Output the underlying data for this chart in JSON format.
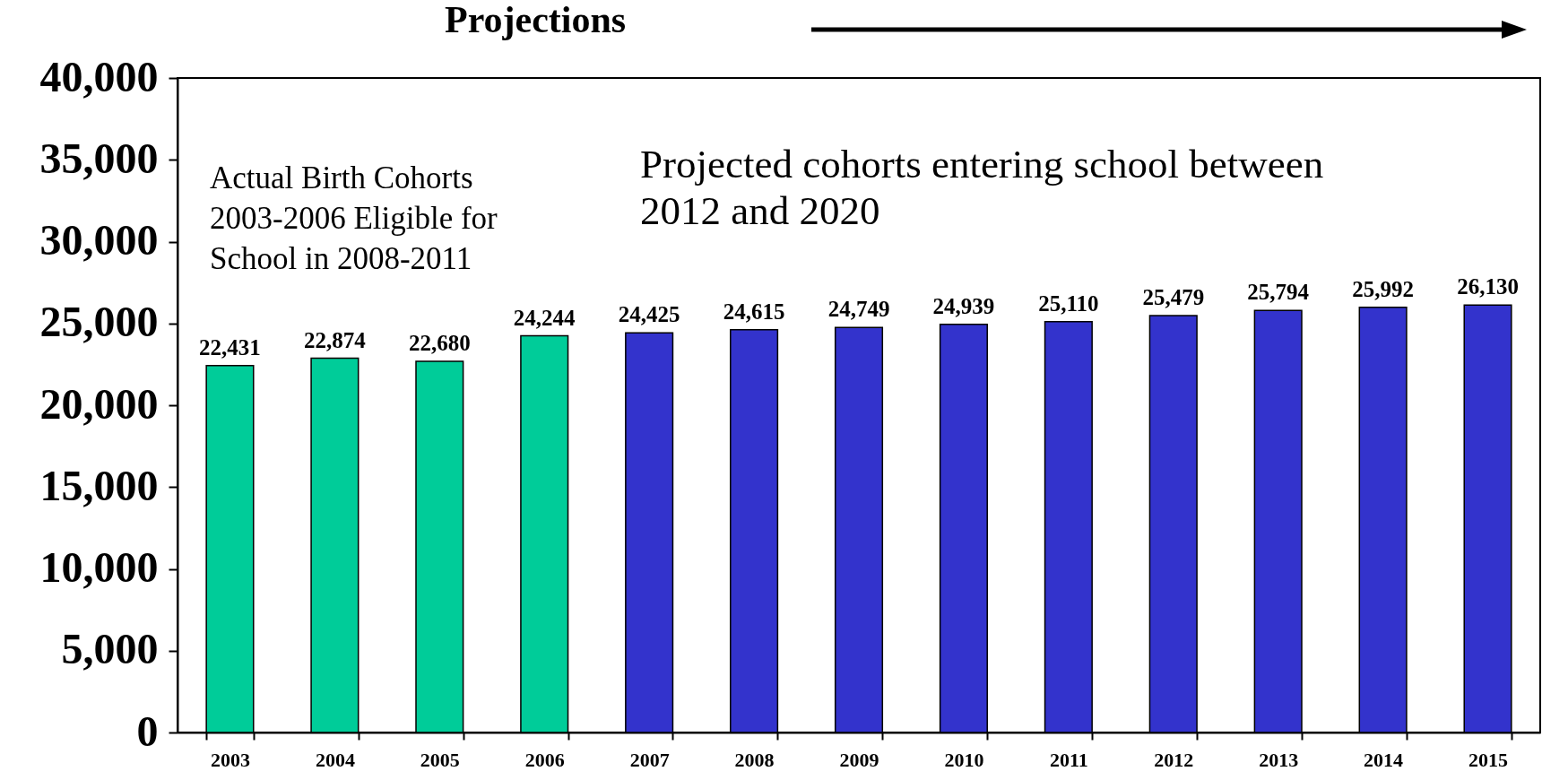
{
  "chart_data": {
    "type": "bar",
    "title": "Projections",
    "categories": [
      "2003",
      "2004",
      "2005",
      "2006",
      "2007",
      "2008",
      "2009",
      "2010",
      "2011",
      "2012",
      "2013",
      "2014",
      "2015"
    ],
    "values": [
      22431,
      22874,
      22680,
      24244,
      24425,
      24615,
      24749,
      24939,
      25110,
      25479,
      25794,
      25992,
      26130
    ],
    "colors": [
      "#00cc99",
      "#00cc99",
      "#00cc99",
      "#00cc99",
      "#3333cc",
      "#3333cc",
      "#3333cc",
      "#3333cc",
      "#3333cc",
      "#3333cc",
      "#3333cc",
      "#3333cc",
      "#3333cc"
    ],
    "value_labels": [
      "22,431",
      "22,874",
      "22,680",
      "24,244",
      "24,425",
      "24,615",
      "24,749",
      "24,939",
      "25,110",
      "25,479",
      "25,794",
      "25,992",
      "26,130"
    ],
    "annotations": [
      "Actual Birth Cohorts\n2003-2006 Eligible for\nSchool in 2008-2011",
      "Projected cohorts entering school between\n2012 and 2020"
    ],
    "ylim": [
      0,
      40000
    ],
    "yticks": [
      {
        "value": 0,
        "label": "0"
      },
      {
        "value": 5000,
        "label": "5,000"
      },
      {
        "value": 10000,
        "label": "10,000"
      },
      {
        "value": 15000,
        "label": "15,000"
      },
      {
        "value": 20000,
        "label": "20,000"
      },
      {
        "value": 25000,
        "label": "25,000"
      },
      {
        "value": 30000,
        "label": "30,000"
      },
      {
        "value": 35000,
        "label": "35,000"
      },
      {
        "value": 40000,
        "label": "40,000"
      }
    ],
    "grid": false
  }
}
